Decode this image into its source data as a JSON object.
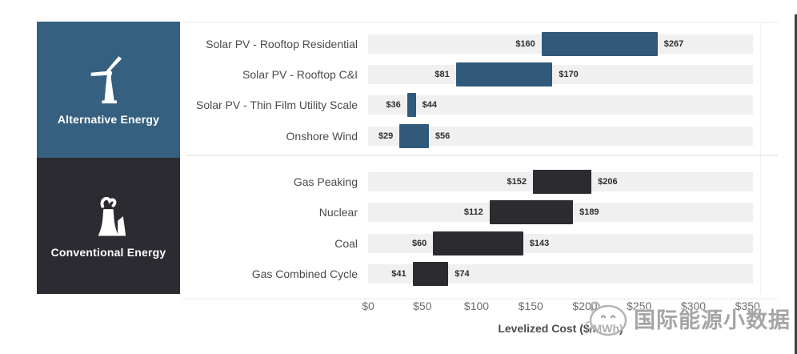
{
  "sidebar": {
    "groups": [
      {
        "label": "Alternative Energy",
        "icon": "wind-turbine-icon",
        "background": "#36607f"
      },
      {
        "label": "Conventional Energy",
        "icon": "power-plant-icon",
        "background": "#2b2b31"
      }
    ]
  },
  "chart_data": {
    "type": "bar",
    "subtype": "horizontal-range-bars",
    "title": "",
    "xlabel": "Levelized Cost ($/MWh)",
    "ylabel": "",
    "xlim": [
      0,
      355
    ],
    "grid": false,
    "legend_position": "left-blocks",
    "x_ticks": [
      {
        "value": 0,
        "label": "$0"
      },
      {
        "value": 50,
        "label": "$50"
      },
      {
        "value": 100,
        "label": "$100"
      },
      {
        "value": 150,
        "label": "$150"
      },
      {
        "value": 200,
        "label": "$200"
      },
      {
        "value": 250,
        "label": "$250"
      },
      {
        "value": 300,
        "label": "$300"
      },
      {
        "value": 350,
        "label": "$350"
      }
    ],
    "groups": [
      {
        "name": "Alternative Energy",
        "bar_color": "#30597a",
        "rows": [
          {
            "label": "Solar PV - Rooftop Residential",
            "min": 160,
            "max": 267,
            "min_label": "$160",
            "max_label": "$267"
          },
          {
            "label": "Solar PV - Rooftop C&I",
            "min": 81,
            "max": 170,
            "min_label": "$81",
            "max_label": "$170"
          },
          {
            "label": "Solar PV - Thin Film Utility Scale",
            "min": 36,
            "max": 44,
            "min_label": "$36",
            "max_label": "$44"
          },
          {
            "label": "Onshore Wind",
            "min": 29,
            "max": 56,
            "min_label": "$29",
            "max_label": "$56"
          }
        ]
      },
      {
        "name": "Conventional Energy",
        "bar_color": "#2b2b30",
        "rows": [
          {
            "label": "Gas Peaking",
            "min": 152,
            "max": 206,
            "min_label": "$152",
            "max_label": "$206"
          },
          {
            "label": "Nuclear",
            "min": 112,
            "max": 189,
            "min_label": "$112",
            "max_label": "$189"
          },
          {
            "label": "Coal",
            "min": 60,
            "max": 143,
            "min_label": "$60",
            "max_label": "$143"
          },
          {
            "label": "Gas Combined Cycle",
            "min": 41,
            "max": 74,
            "min_label": "$41",
            "max_label": "$74"
          }
        ]
      }
    ],
    "track_color": "#f0f0f0"
  },
  "watermark": {
    "text": "国际能源小数据",
    "icon": "globe-cartoon-icon"
  },
  "colors": {
    "alt_block": "#36607f",
    "conv_block": "#2b2b31",
    "alt_bar": "#30597a",
    "conv_bar": "#2b2b30",
    "track": "#f0f0f0",
    "row_label": "#4a4a4a",
    "tick_label": "#6e6e6e"
  }
}
